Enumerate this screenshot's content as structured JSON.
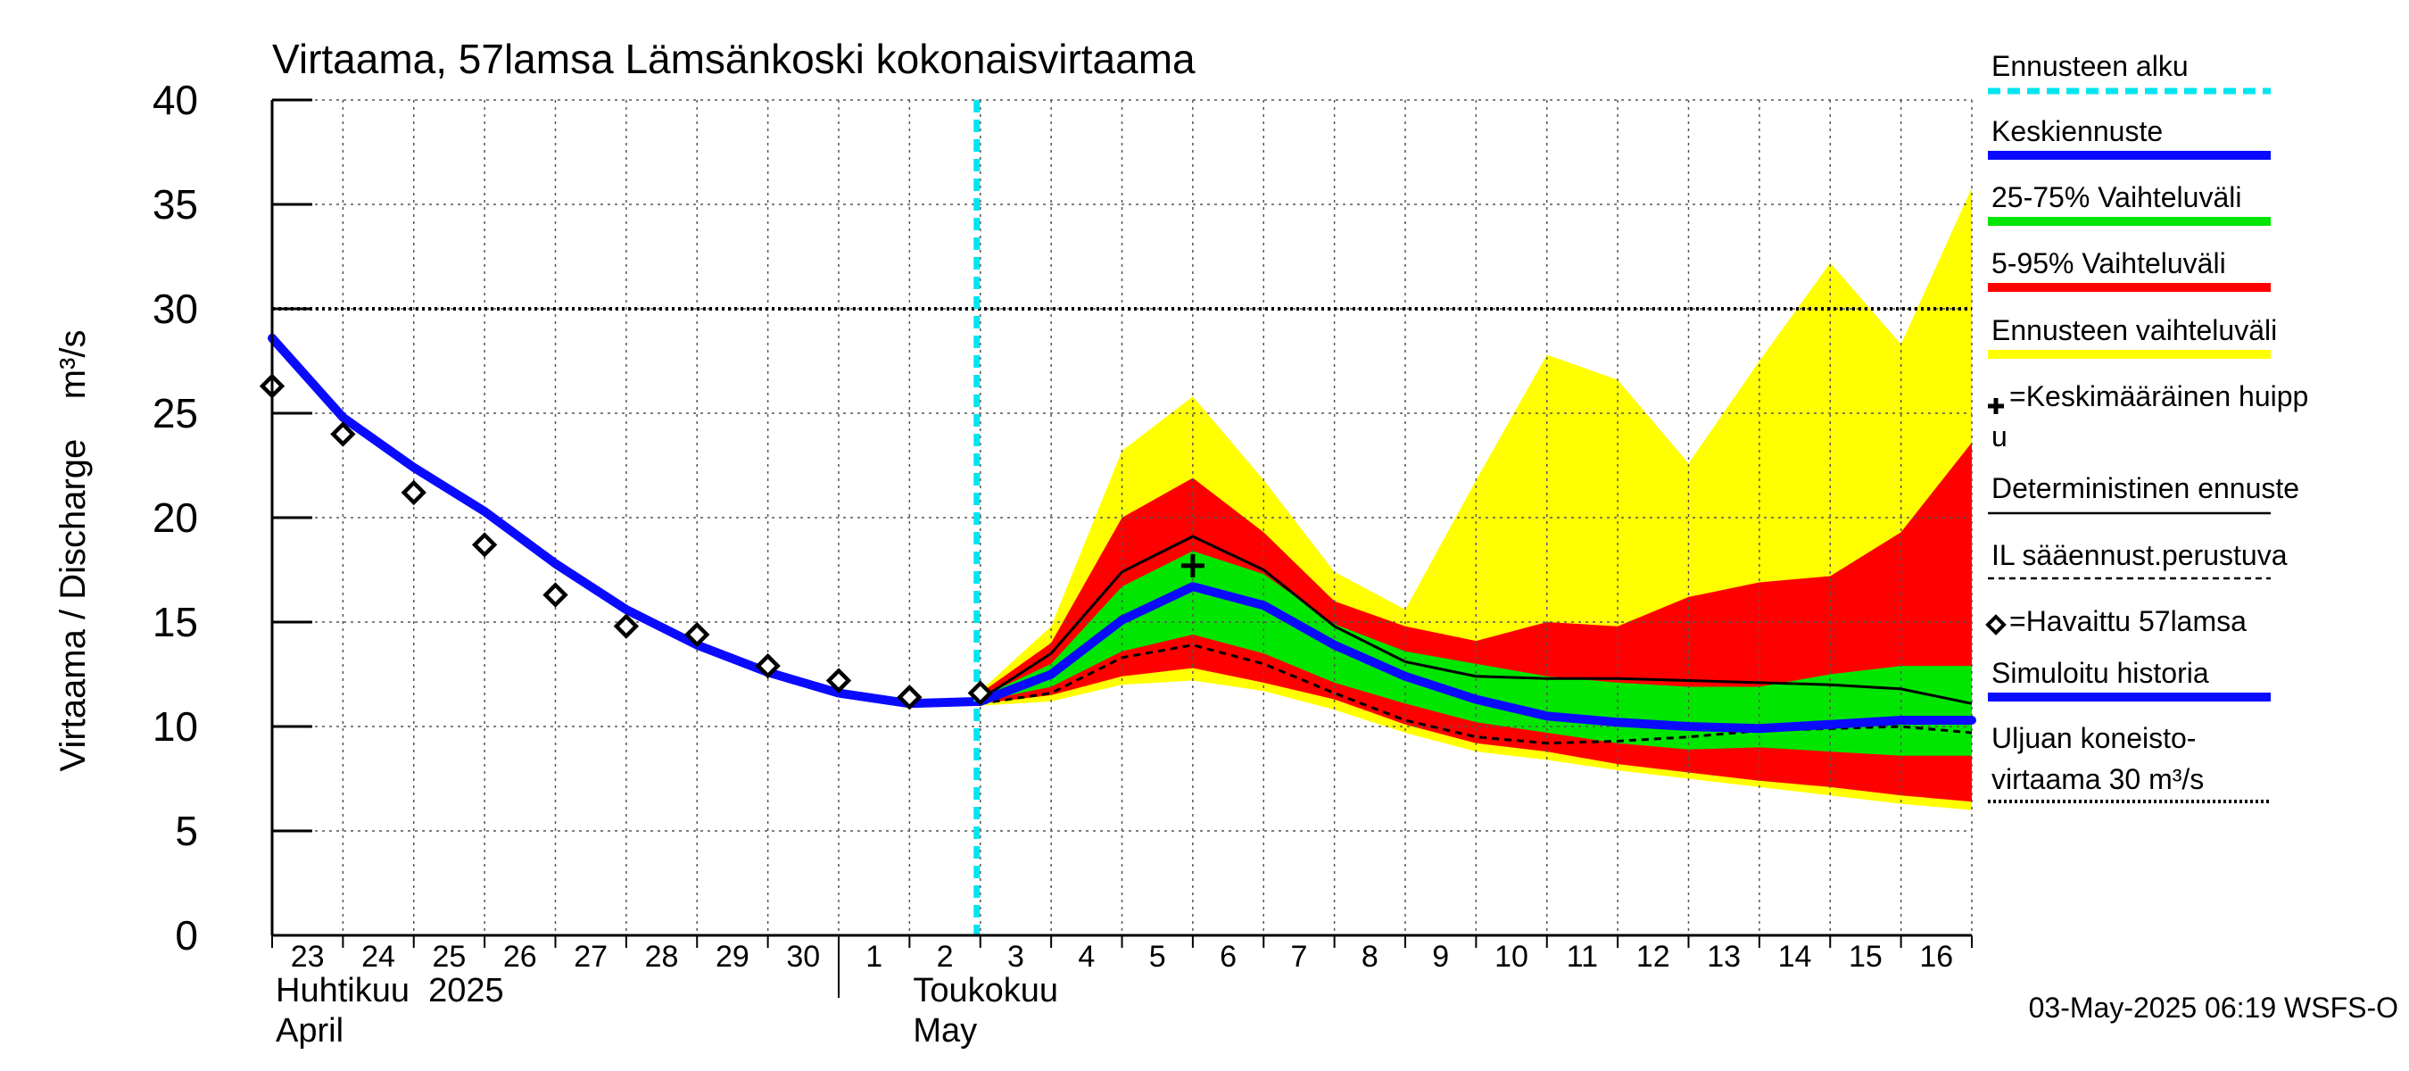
{
  "chart_data": {
    "type": "area",
    "title": "Virtaama, 57lamsa Lämsänkoski kokonaisvirtaama",
    "ylabel": "Virtaama / Discharge    m³/s",
    "ylim": [
      0,
      40
    ],
    "yticks": [
      0,
      5,
      10,
      15,
      20,
      25,
      30,
      35,
      40
    ],
    "xlim": [
      0,
      24
    ],
    "x_tick_labels": [
      {
        "x": 0,
        "label": "23"
      },
      {
        "x": 1,
        "label": "24"
      },
      {
        "x": 2,
        "label": "25"
      },
      {
        "x": 3,
        "label": "26"
      },
      {
        "x": 4,
        "label": "27"
      },
      {
        "x": 5,
        "label": "28"
      },
      {
        "x": 6,
        "label": "29"
      },
      {
        "x": 7,
        "label": "30"
      },
      {
        "x": 8,
        "label": "1"
      },
      {
        "x": 9,
        "label": "2"
      },
      {
        "x": 10,
        "label": "3"
      },
      {
        "x": 11,
        "label": "4"
      },
      {
        "x": 12,
        "label": "5"
      },
      {
        "x": 13,
        "label": "6"
      },
      {
        "x": 14,
        "label": "7"
      },
      {
        "x": 15,
        "label": "8"
      },
      {
        "x": 16,
        "label": "9"
      },
      {
        "x": 17,
        "label": "10"
      },
      {
        "x": 18,
        "label": "11"
      },
      {
        "x": 19,
        "label": "12"
      },
      {
        "x": 20,
        "label": "13"
      },
      {
        "x": 21,
        "label": "14"
      },
      {
        "x": 22,
        "label": "15"
      },
      {
        "x": 23,
        "label": "16"
      }
    ],
    "month_labels": [
      {
        "x": 0,
        "line1": "Huhtikuu  2025",
        "line2": "April"
      },
      {
        "x": 9,
        "line1": "Toukokuu",
        "line2": "May"
      }
    ],
    "month_boundary_x": 8,
    "forecast_start_x": 10,
    "threshold": {
      "value": 30
    },
    "bands": {
      "ennusteen_vaihteluvali": {
        "x": [
          10,
          11,
          12,
          13,
          14,
          15,
          16,
          17,
          18,
          19,
          20,
          21,
          22,
          23,
          24
        ],
        "upper": [
          11.7,
          14.8,
          23.2,
          25.8,
          21.8,
          17.4,
          15.6,
          21.8,
          27.8,
          26.6,
          22.6,
          27.5,
          32.2,
          28.3,
          35.8
        ],
        "lower": [
          11.0,
          11.2,
          12.0,
          12.2,
          11.7,
          10.8,
          9.7,
          8.8,
          8.4,
          7.9,
          7.5,
          7.1,
          6.7,
          6.3,
          6.0
        ]
      },
      "vaihteluvali_5_95": {
        "x": [
          10,
          11,
          12,
          13,
          14,
          15,
          16,
          17,
          18,
          19,
          20,
          21,
          22,
          23,
          24
        ],
        "upper": [
          11.6,
          14.0,
          20.0,
          21.9,
          19.3,
          16.0,
          14.8,
          14.1,
          15.0,
          14.8,
          16.2,
          16.9,
          17.2,
          19.3,
          23.6
        ],
        "lower": [
          11.1,
          11.5,
          12.4,
          12.8,
          12.1,
          11.3,
          10.1,
          9.2,
          8.8,
          8.2,
          7.8,
          7.4,
          7.1,
          6.7,
          6.4
        ]
      },
      "vaihteluvali_25_75": {
        "x": [
          10,
          11,
          12,
          13,
          14,
          15,
          16,
          17,
          18,
          19,
          20,
          21,
          22,
          23,
          24
        ],
        "upper": [
          11.4,
          13.0,
          16.7,
          18.4,
          17.3,
          14.9,
          13.6,
          13.0,
          12.4,
          12.1,
          11.9,
          11.9,
          12.5,
          12.9,
          12.9
        ],
        "lower": [
          11.2,
          11.9,
          13.6,
          14.4,
          13.5,
          12.1,
          11.1,
          10.2,
          9.7,
          9.2,
          8.9,
          9.0,
          8.8,
          8.6,
          8.6
        ]
      }
    },
    "series": [
      {
        "name": "Keskiennuste",
        "color": "#0a0aff",
        "x": [
          10,
          11,
          12,
          13,
          14,
          15,
          16,
          17,
          18,
          19,
          20,
          21,
          22,
          23,
          24
        ],
        "y": [
          11.2,
          12.5,
          15.1,
          16.7,
          15.8,
          13.9,
          12.4,
          11.3,
          10.5,
          10.2,
          10.0,
          9.9,
          10.1,
          10.3,
          10.3
        ]
      },
      {
        "name": "Deterministinen ennuste",
        "color": "#000000",
        "x": [
          10,
          11,
          12,
          13,
          14,
          15,
          16,
          17,
          18,
          19,
          20,
          21,
          22,
          23,
          24
        ],
        "y": [
          11.3,
          13.5,
          17.4,
          19.1,
          17.5,
          14.8,
          13.1,
          12.4,
          12.3,
          12.3,
          12.2,
          12.1,
          12.0,
          11.8,
          11.1
        ]
      },
      {
        "name": "IL sääennust.perustuva",
        "color": "#000000",
        "x": [
          10,
          11,
          12,
          13,
          14,
          15,
          16,
          17,
          18,
          19,
          20,
          21,
          22,
          23,
          24
        ],
        "y": [
          11.1,
          11.6,
          13.3,
          13.9,
          13.0,
          11.6,
          10.3,
          9.5,
          9.2,
          9.3,
          9.5,
          9.8,
          9.9,
          10.0,
          9.7
        ]
      },
      {
        "name": "Simuloitu historia",
        "color": "#0a0aff",
        "x": [
          0,
          1,
          2,
          3,
          4,
          5,
          6,
          7,
          8,
          9,
          10
        ],
        "y": [
          28.6,
          24.8,
          22.4,
          20.3,
          17.8,
          15.6,
          13.9,
          12.6,
          11.6,
          11.1,
          11.2
        ]
      }
    ],
    "observed": {
      "name": "Havaittu 57lamsa",
      "x": [
        0,
        1,
        2,
        3,
        4,
        5,
        6,
        7,
        8,
        9,
        10
      ],
      "y": [
        26.3,
        24.0,
        21.2,
        18.7,
        16.3,
        14.8,
        14.4,
        12.9,
        12.2,
        11.4,
        11.6
      ]
    },
    "mean_peak": {
      "x": 13,
      "y": 17.7
    },
    "legend": {
      "placement": "right",
      "items": [
        {
          "key": "alku",
          "label": "Ennusteen alku",
          "color": "#00e5f0",
          "style": "dash-thick"
        },
        {
          "key": "keski",
          "label": "Keskiennuste",
          "color": "#0a0aff",
          "style": "thick"
        },
        {
          "key": "v2575",
          "label": "25-75% Vaihteluväli",
          "color": "#00e600",
          "style": "thick"
        },
        {
          "key": "v595",
          "label": "5-95% Vaihteluväli",
          "color": "#ff0000",
          "style": "thick"
        },
        {
          "key": "vaiht",
          "label": "Ennusteen vaihteluväli",
          "color": "#ffff00",
          "style": "thick"
        },
        {
          "key": "huippu",
          "label": "=Keskimääräinen huipp",
          "label2": "u",
          "color": "#000000",
          "style": "plus"
        },
        {
          "key": "det",
          "label": "Deterministinen ennuste",
          "color": "#000000",
          "style": "thin"
        },
        {
          "key": "il",
          "label": "IL sääennust.perustuva",
          "color": "#000000",
          "style": "dash"
        },
        {
          "key": "hav",
          "label": "=Havaittu 57lamsa",
          "color": "#000000",
          "style": "diamond"
        },
        {
          "key": "sim",
          "label": "Simuloitu historia",
          "color": "#0a0aff",
          "style": "thick"
        },
        {
          "key": "uljua",
          "label": "Uljuan koneisto-",
          "label2": "virtaama 30 m³/s",
          "color": "#000000",
          "style": "dot"
        }
      ]
    },
    "footer": "03-May-2025 06:19 WSFS-O"
  }
}
